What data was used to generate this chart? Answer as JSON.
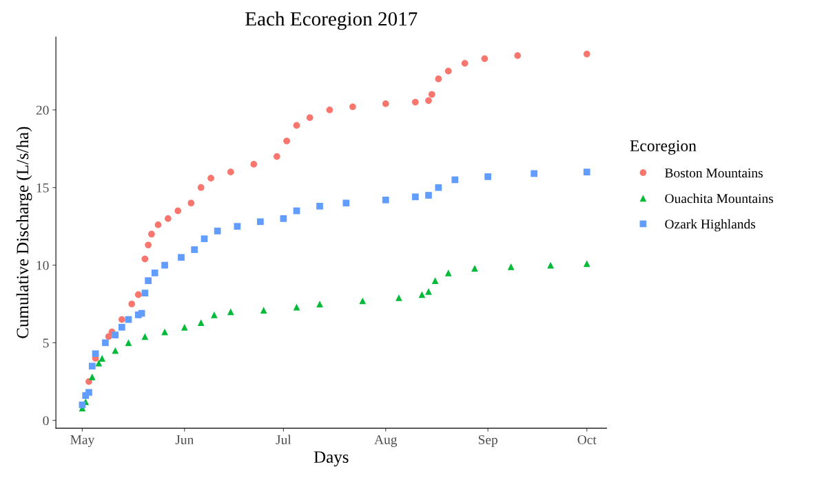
{
  "chart_data": {
    "type": "scatter",
    "title": "Each Ecoregion 2017",
    "xlabel": "Days",
    "ylabel": "Cumulative Discharge (L/s/ha)",
    "legend_title": "Ecoregion",
    "legend": "right",
    "grid": false,
    "xlim": [
      "2017-04-23",
      "2017-10-07"
    ],
    "xticks": [
      {
        "value": "2017-05-01",
        "label": "May"
      },
      {
        "value": "2017-06-01",
        "label": "Jun"
      },
      {
        "value": "2017-07-01",
        "label": "Jul"
      },
      {
        "value": "2017-08-01",
        "label": "Aug"
      },
      {
        "value": "2017-09-01",
        "label": "Sep"
      },
      {
        "value": "2017-10-01",
        "label": "Oct"
      }
    ],
    "ylim": [
      -0.5,
      24.7
    ],
    "yticks": [
      0,
      5,
      10,
      15,
      20
    ],
    "series": [
      {
        "name": "Boston Mountains",
        "color": "#f8766d",
        "marker": "circle",
        "x": [
          "2017-05-03",
          "2017-05-05",
          "2017-05-09",
          "2017-05-10",
          "2017-05-13",
          "2017-05-16",
          "2017-05-18",
          "2017-05-20",
          "2017-05-21",
          "2017-05-22",
          "2017-05-24",
          "2017-05-27",
          "2017-05-30",
          "2017-06-03",
          "2017-06-06",
          "2017-06-09",
          "2017-06-15",
          "2017-06-22",
          "2017-06-29",
          "2017-07-02",
          "2017-07-05",
          "2017-07-09",
          "2017-07-15",
          "2017-07-22",
          "2017-08-01",
          "2017-08-10",
          "2017-08-14",
          "2017-08-15",
          "2017-08-17",
          "2017-08-20",
          "2017-08-25",
          "2017-08-31",
          "2017-09-10",
          "2017-10-01"
        ],
        "values": [
          2.5,
          4.0,
          5.4,
          5.7,
          6.5,
          7.5,
          8.1,
          10.4,
          11.3,
          12.0,
          12.6,
          13.0,
          13.5,
          14.0,
          15.0,
          15.6,
          16.0,
          16.5,
          17.0,
          18.0,
          19.0,
          19.5,
          20.0,
          20.2,
          20.4,
          20.5,
          20.6,
          21.0,
          22.0,
          22.5,
          23.0,
          23.3,
          23.5,
          23.6
        ]
      },
      {
        "name": "Ouachita Mountains",
        "color": "#00ba38",
        "marker": "triangle",
        "x": [
          "2017-05-01",
          "2017-05-02",
          "2017-05-04",
          "2017-05-06",
          "2017-05-07",
          "2017-05-11",
          "2017-05-15",
          "2017-05-20",
          "2017-05-26",
          "2017-06-01",
          "2017-06-06",
          "2017-06-10",
          "2017-06-15",
          "2017-06-25",
          "2017-07-05",
          "2017-07-12",
          "2017-07-25",
          "2017-08-05",
          "2017-08-12",
          "2017-08-14",
          "2017-08-16",
          "2017-08-20",
          "2017-08-28",
          "2017-09-08",
          "2017-09-20",
          "2017-10-01"
        ],
        "values": [
          0.8,
          1.2,
          2.8,
          3.7,
          4.0,
          4.5,
          5.0,
          5.4,
          5.7,
          6.0,
          6.3,
          6.8,
          7.0,
          7.1,
          7.3,
          7.5,
          7.7,
          7.9,
          8.1,
          8.3,
          9.0,
          9.5,
          9.8,
          9.9,
          10.0,
          10.1
        ]
      },
      {
        "name": "Ozark Highlands",
        "color": "#619cff",
        "marker": "square",
        "x": [
          "2017-05-01",
          "2017-05-02",
          "2017-05-03",
          "2017-05-04",
          "2017-05-05",
          "2017-05-08",
          "2017-05-11",
          "2017-05-13",
          "2017-05-15",
          "2017-05-18",
          "2017-05-19",
          "2017-05-20",
          "2017-05-21",
          "2017-05-23",
          "2017-05-26",
          "2017-05-31",
          "2017-06-04",
          "2017-06-07",
          "2017-06-11",
          "2017-06-17",
          "2017-06-24",
          "2017-07-01",
          "2017-07-05",
          "2017-07-12",
          "2017-07-20",
          "2017-08-01",
          "2017-08-10",
          "2017-08-14",
          "2017-08-17",
          "2017-08-22",
          "2017-09-01",
          "2017-09-15",
          "2017-10-01"
        ],
        "values": [
          1.0,
          1.6,
          1.8,
          3.5,
          4.3,
          5.0,
          5.5,
          6.0,
          6.5,
          6.8,
          6.9,
          8.2,
          9.0,
          9.5,
          10.0,
          10.5,
          11.0,
          11.7,
          12.2,
          12.5,
          12.8,
          13.0,
          13.5,
          13.8,
          14.0,
          14.2,
          14.4,
          14.5,
          15.0,
          15.5,
          15.7,
          15.9,
          16.0
        ]
      }
    ]
  }
}
